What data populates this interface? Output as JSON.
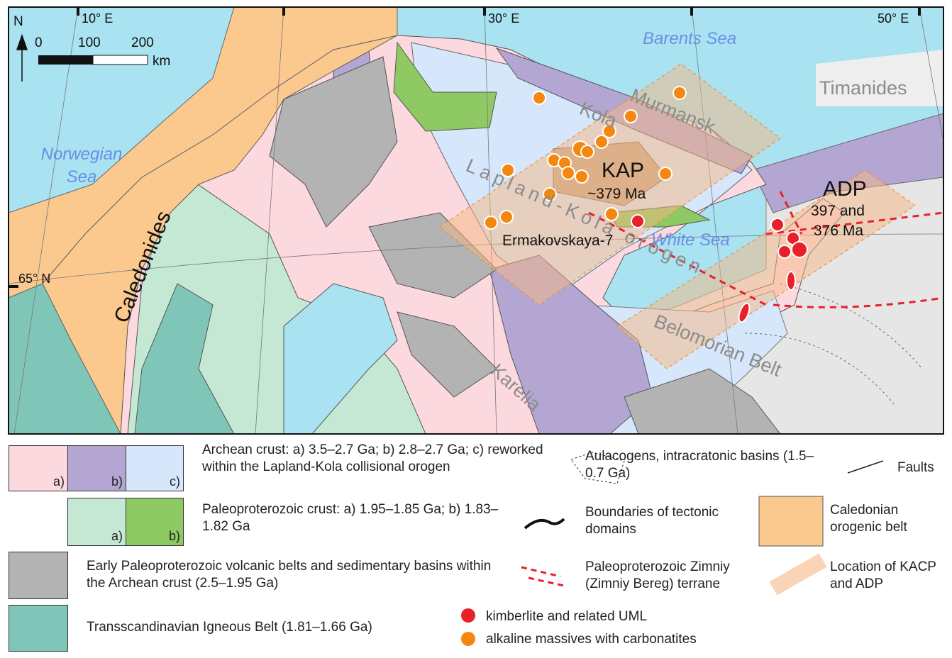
{
  "map": {
    "north": "N",
    "lon_labels": [
      "10° E",
      "30° E",
      "50° E"
    ],
    "lat_labels": [
      "65° N"
    ],
    "scale": {
      "ticks": [
        "0",
        "100",
        "200"
      ],
      "unit": "km"
    },
    "seas": {
      "barents": "Barents Sea",
      "norwegian": [
        "Norwegian",
        "Sea"
      ],
      "white": "White Sea"
    },
    "regions": {
      "timanides": "Timanides",
      "caledonides": "Caledonides",
      "kola": "Kola",
      "murmansk": "Murmansk",
      "orogen": "Lapland-Kola orogen",
      "belomorian": "Belomorian Belt",
      "karelia": "Karelia"
    },
    "provinces": {
      "kap": "KAP",
      "kap_age": "~379 Ma",
      "adp": "ADP",
      "adp_age": [
        "397 and",
        "376 Ma"
      ]
    },
    "sites": {
      "ermakovskaya": "Ermakovskaya-7"
    }
  },
  "legend": {
    "archean": {
      "text": "Archean crust: a) 3.5–2.7 Ga; b) 2.8–2.7 Ga; c) reworked within the Lapland-Kola collisional orogen",
      "parts": [
        "a)",
        "b)",
        "c)"
      ]
    },
    "paleoproterozoic": {
      "text": "Paleoproterozoic crust: a) 1.95–1.85 Ga; b) 1.83–1.82 Ga",
      "parts": [
        "a)",
        "b)"
      ]
    },
    "volcanic": "Early Paleoproterozoic volcanic belts and sedimentary basins within the Archean crust (2.5–1.95 Ga)",
    "tib": "Transscandinavian Igneous Belt (1.81–1.66 Ga)",
    "aulacogens": "Aulacogens, intracratonic basins (1.5–0.7 Ga)",
    "faults": "Faults",
    "boundaries": "Boundaries of tectonic domains",
    "zimniy": "Paleoproterozoic Zimniy (Zimniy Bereg) terrane",
    "caledonian": "Caledonian orogenic belt",
    "location": "Location of KACP and ADP",
    "kimberlite": "kimberlite and related UML",
    "alkaline": "alkaline massives with carbonatites"
  }
}
